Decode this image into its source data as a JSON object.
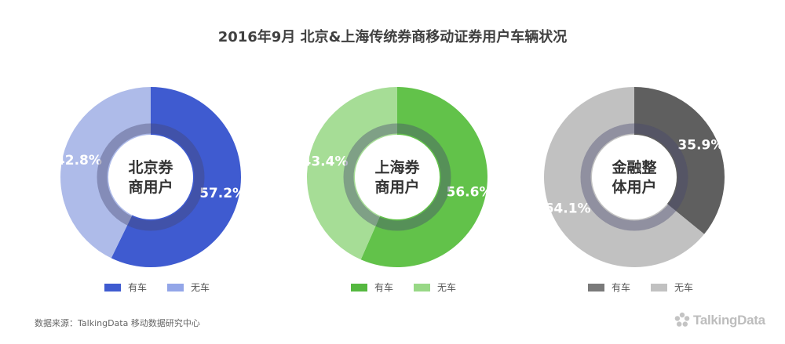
{
  "title": "2016年9月  北京&上海传统券商移动证券用户车辆状况",
  "source": "数据来源：TalkingData 移动数据研究中心",
  "brand": "TalkingData",
  "chart_data": [
    {
      "type": "pie",
      "center_label": [
        "北京券",
        "商用户"
      ],
      "slices": [
        {
          "name": "有车",
          "value": 57.2,
          "label": "57.2%",
          "color": "#3f5bd0",
          "legend_color": "#3f5bd0"
        },
        {
          "name": "无车",
          "value": 42.8,
          "label": "42.8%",
          "color": "#aebbe9",
          "legend_color": "#93a6e8"
        }
      ]
    },
    {
      "type": "pie",
      "center_label": [
        "上海券",
        "商用户"
      ],
      "slices": [
        {
          "name": "有车",
          "value": 56.6,
          "label": "56.6%",
          "color": "#62c24a",
          "legend_color": "#55b840"
        },
        {
          "name": "无车",
          "value": 43.4,
          "label": "43.4%",
          "color": "#a6dd96",
          "legend_color": "#98d886"
        }
      ]
    },
    {
      "type": "pie",
      "center_label": [
        "金融整",
        "体用户"
      ],
      "slices": [
        {
          "name": "有车",
          "value": 35.9,
          "label": "35.9%",
          "color": "#5f5f5f",
          "legend_color": "#7a7a7a"
        },
        {
          "name": "无车",
          "value": 64.1,
          "label": "64.1%",
          "color": "#c1c1c1",
          "legend_color": "#c1c1c1"
        }
      ]
    }
  ]
}
